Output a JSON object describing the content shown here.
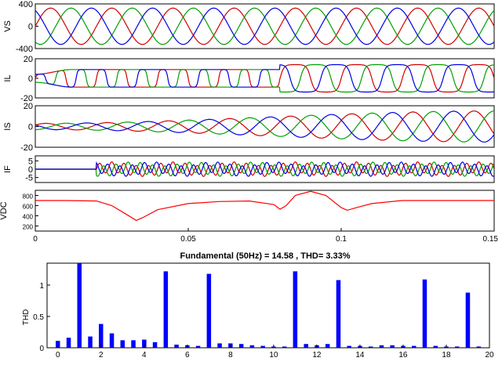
{
  "figure": {
    "time_axis": {
      "min": 0,
      "max": 0.15,
      "ticks": [
        "0",
        "0.05",
        "0.1",
        "0.15"
      ]
    }
  },
  "chart_data": [
    {
      "type": "line",
      "ylabel": "VS",
      "ylim": [
        -400,
        400
      ],
      "yticks": [
        "400",
        "0",
        "-400"
      ],
      "x_range": [
        0,
        0.15
      ],
      "series": [
        {
          "color": "#d00000",
          "amplitude": 325,
          "frequency_hz": 50,
          "phase_deg": 0
        },
        {
          "color": "#00a000",
          "amplitude": 325,
          "frequency_hz": 50,
          "phase_deg": -120
        },
        {
          "color": "#0000e0",
          "amplitude": 325,
          "frequency_hz": 50,
          "phase_deg": 120
        }
      ]
    },
    {
      "type": "line",
      "ylabel": "IL",
      "ylim": [
        -20,
        20
      ],
      "yticks": [
        "20",
        "0",
        "-20"
      ],
      "x_range": [
        0,
        0.15
      ],
      "load_step_time": 0.08,
      "series": [
        {
          "color": "#d00000",
          "amplitude_before": 9,
          "amplitude_after": 14
        },
        {
          "color": "#00a000",
          "amplitude_before": 9,
          "amplitude_after": 14
        },
        {
          "color": "#0000e0",
          "amplitude_before": 9,
          "amplitude_after": 14
        }
      ]
    },
    {
      "type": "line",
      "ylabel": "IS",
      "ylim": [
        -20,
        20
      ],
      "yticks": [
        "20",
        "0",
        "-20"
      ],
      "x_range": [
        0,
        0.15
      ],
      "series": [
        {
          "color": "#d00000",
          "amplitude_end": 15
        },
        {
          "color": "#00a000",
          "amplitude_end": 15
        },
        {
          "color": "#0000e0",
          "amplitude_end": 15
        }
      ]
    },
    {
      "type": "line",
      "ylabel": "IF",
      "ylim": [
        -8,
        8
      ],
      "yticks": [
        "5",
        "0",
        "-5"
      ],
      "x_range": [
        0,
        0.15
      ],
      "compensation_start": 0.02,
      "series": [
        {
          "color": "#d00000"
        },
        {
          "color": "#00a000"
        },
        {
          "color": "#0000e0"
        }
      ]
    },
    {
      "type": "line",
      "ylabel": "VDC",
      "ylim": [
        100,
        900
      ],
      "yticks": [
        "800",
        "600",
        "400",
        "200"
      ],
      "x_range": [
        0,
        0.15
      ],
      "series": [
        {
          "color": "#ff0000",
          "x": [
            0,
            0.01,
            0.02,
            0.025,
            0.03,
            0.033,
            0.035,
            0.04,
            0.05,
            0.06,
            0.07,
            0.078,
            0.08,
            0.082,
            0.085,
            0.09,
            0.095,
            0.1,
            0.102,
            0.105,
            0.11,
            0.12,
            0.15
          ],
          "y": [
            700,
            700,
            690,
            600,
            420,
            310,
            360,
            520,
            640,
            680,
            690,
            620,
            530,
            600,
            800,
            880,
            800,
            560,
            510,
            560,
            640,
            700,
            700
          ]
        }
      ]
    },
    {
      "type": "bar",
      "title": "Fundamental (50Hz) = 14.58 , THD= 3.33%",
      "ylabel": "THD",
      "ylim": [
        0,
        1.35
      ],
      "yticks": [
        "0",
        "0.5",
        "1"
      ],
      "xticks": [
        "0",
        "2",
        "4",
        "6",
        "8",
        "10",
        "12",
        "14",
        "16",
        "18",
        "20"
      ],
      "categories": [
        0,
        0.5,
        1,
        1.5,
        2,
        2.5,
        3,
        3.5,
        4,
        4.5,
        5,
        5.5,
        6,
        6.5,
        7,
        7.5,
        8,
        8.5,
        9,
        9.5,
        10,
        10.5,
        11,
        11.5,
        12,
        12.5,
        13,
        13.5,
        14,
        14.5,
        15,
        15.5,
        16,
        16.5,
        17,
        17.5,
        18,
        18.5,
        19,
        19.5
      ],
      "values": [
        0.11,
        0.16,
        1.35,
        0.18,
        0.38,
        0.23,
        0.12,
        0.12,
        0.13,
        0.09,
        1.22,
        0.05,
        0.04,
        0.03,
        1.18,
        0.07,
        0.07,
        0.06,
        0.04,
        0.03,
        0.02,
        0.02,
        1.22,
        0.06,
        0.04,
        0.06,
        1.08,
        0.03,
        0.03,
        0.02,
        0.04,
        0.04,
        0.03,
        0.03,
        1.09,
        0.03,
        0.02,
        0.02,
        0.88,
        0.02
      ],
      "color": "#0000ff"
    }
  ]
}
